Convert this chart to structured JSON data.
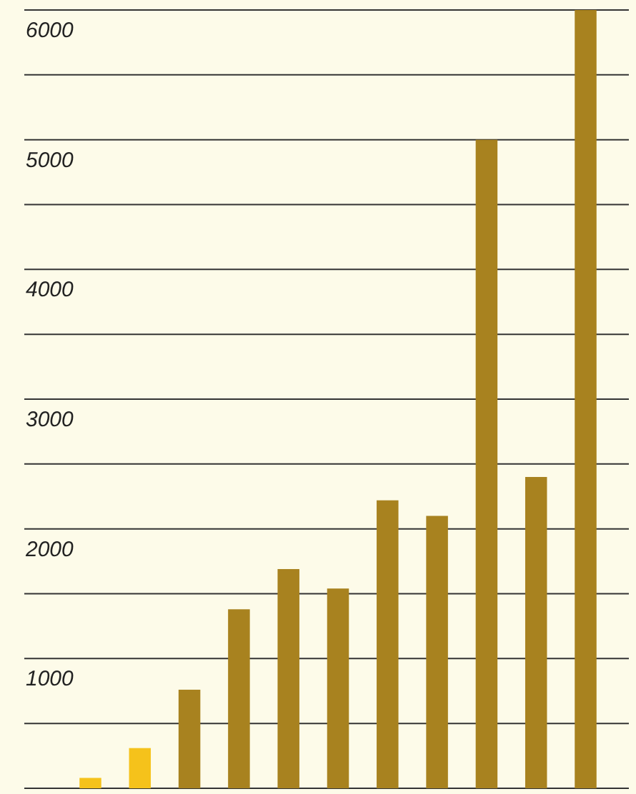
{
  "chart_data": {
    "type": "bar",
    "categories": [
      null,
      null,
      null,
      null,
      null,
      null,
      null,
      null,
      null,
      null,
      null
    ],
    "values": [
      80,
      310,
      760,
      1380,
      1690,
      1540,
      2220,
      2100,
      5000,
      2400,
      6000
    ],
    "colors": [
      "#f5c21b",
      "#f5c21b",
      "#a8821f",
      "#a8821f",
      "#a8821f",
      "#a8821f",
      "#a8821f",
      "#a8821f",
      "#a8821f",
      "#a8821f",
      "#a8821f"
    ],
    "ylim": [
      0,
      6000
    ],
    "yticks": [
      {
        "value": 0,
        "label": null
      },
      {
        "value": 500,
        "label": null
      },
      1000,
      {
        "value": 1500,
        "label": null
      },
      2000,
      {
        "value": 2500,
        "label": null
      },
      3000,
      {
        "value": 3500,
        "label": null
      },
      4000,
      {
        "value": 4500,
        "label": null
      },
      5000,
      {
        "value": 5500,
        "label": null
      },
      6000
    ],
    "grid": "y",
    "tick_labels": "y"
  }
}
